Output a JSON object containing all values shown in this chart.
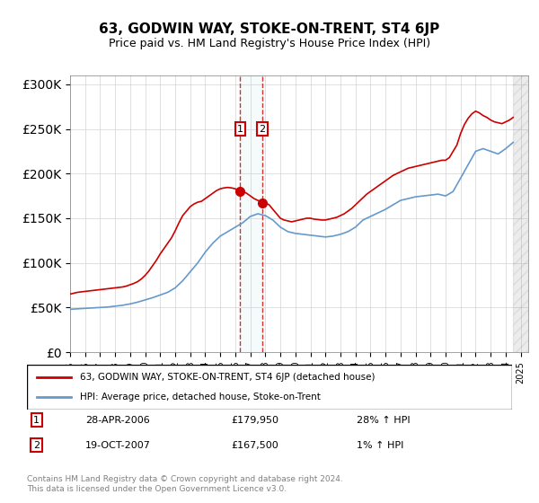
{
  "title": "63, GODWIN WAY, STOKE-ON-TRENT, ST4 6JP",
  "subtitle": "Price paid vs. HM Land Registry's House Price Index (HPI)",
  "legend_line1": "63, GODWIN WAY, STOKE-ON-TRENT, ST4 6JP (detached house)",
  "legend_line2": "HPI: Average price, detached house, Stoke-on-Trent",
  "transaction1_label": "1",
  "transaction1_date": "28-APR-2006",
  "transaction1_price": "£179,950",
  "transaction1_hpi": "28% ↑ HPI",
  "transaction2_label": "2",
  "transaction2_date": "19-OCT-2007",
  "transaction2_price": "£167,500",
  "transaction2_hpi": "1% ↑ HPI",
  "footnote": "Contains HM Land Registry data © Crown copyright and database right 2024.\nThis data is licensed under the Open Government Licence v3.0.",
  "red_line_color": "#cc0000",
  "blue_line_color": "#6699cc",
  "transaction1_x": 2006.32,
  "transaction2_x": 2007.8,
  "ylim_min": 0,
  "ylim_max": 310000,
  "xlim_min": 1995,
  "xlim_max": 2025.5,
  "hpi_years": [
    1995,
    1995.5,
    1996,
    1996.5,
    1997,
    1997.5,
    1998,
    1998.5,
    1999,
    1999.5,
    2000,
    2000.5,
    2001,
    2001.5,
    2002,
    2002.5,
    2003,
    2003.5,
    2004,
    2004.5,
    2005,
    2005.5,
    2006,
    2006.5,
    2007,
    2007.5,
    2008,
    2008.5,
    2009,
    2009.5,
    2010,
    2010.5,
    2011,
    2011.5,
    2012,
    2012.5,
    2013,
    2013.5,
    2014,
    2014.5,
    2015,
    2015.5,
    2016,
    2016.5,
    2017,
    2017.5,
    2018,
    2018.5,
    2019,
    2019.5,
    2020,
    2020.5,
    2021,
    2021.5,
    2022,
    2022.5,
    2023,
    2023.5,
    2024,
    2024.5
  ],
  "hpi_values": [
    48000,
    48500,
    49000,
    49500,
    50000,
    50500,
    51500,
    52500,
    54000,
    56000,
    58500,
    61000,
    64000,
    67000,
    72000,
    80000,
    90000,
    100000,
    112000,
    122000,
    130000,
    135000,
    140000,
    145000,
    152000,
    155000,
    153000,
    148000,
    140000,
    135000,
    133000,
    132000,
    131000,
    130000,
    129000,
    130000,
    132000,
    135000,
    140000,
    148000,
    152000,
    156000,
    160000,
    165000,
    170000,
    172000,
    174000,
    175000,
    176000,
    177000,
    175000,
    180000,
    195000,
    210000,
    225000,
    228000,
    225000,
    222000,
    228000,
    235000
  ],
  "price_years": [
    1995,
    1995.25,
    1995.5,
    1995.75,
    1996,
    1996.25,
    1996.5,
    1996.75,
    1997,
    1997.25,
    1997.5,
    1997.75,
    1998,
    1998.25,
    1998.5,
    1998.75,
    1999,
    1999.25,
    1999.5,
    1999.75,
    2000,
    2000.25,
    2000.5,
    2000.75,
    2001,
    2001.25,
    2001.5,
    2001.75,
    2002,
    2002.25,
    2002.5,
    2002.75,
    2003,
    2003.25,
    2003.5,
    2003.75,
    2004,
    2004.25,
    2004.5,
    2004.75,
    2005,
    2005.25,
    2005.5,
    2005.75,
    2006,
    2006.25,
    2006.5,
    2006.75,
    2007,
    2007.25,
    2007.5,
    2007.75,
    2008,
    2008.25,
    2008.5,
    2008.75,
    2009,
    2009.25,
    2009.5,
    2009.75,
    2010,
    2010.25,
    2010.5,
    2010.75,
    2011,
    2011.25,
    2011.5,
    2011.75,
    2012,
    2012.25,
    2012.5,
    2012.75,
    2013,
    2013.25,
    2013.5,
    2013.75,
    2014,
    2014.25,
    2014.5,
    2014.75,
    2015,
    2015.25,
    2015.5,
    2015.75,
    2016,
    2016.25,
    2016.5,
    2016.75,
    2017,
    2017.25,
    2017.5,
    2017.75,
    2018,
    2018.25,
    2018.5,
    2018.75,
    2019,
    2019.25,
    2019.5,
    2019.75,
    2020,
    2020.25,
    2020.5,
    2020.75,
    2021,
    2021.25,
    2021.5,
    2021.75,
    2022,
    2022.25,
    2022.5,
    2022.75,
    2023,
    2023.25,
    2023.5,
    2023.75,
    2024,
    2024.25,
    2024.5
  ],
  "price_values": [
    65000,
    66000,
    67000,
    67500,
    68000,
    68500,
    69000,
    69500,
    70000,
    70500,
    71000,
    71500,
    72000,
    72500,
    73000,
    74000,
    75500,
    77000,
    79000,
    82000,
    86000,
    91000,
    97000,
    103000,
    110000,
    116000,
    122000,
    128000,
    136000,
    145000,
    153000,
    158000,
    163000,
    166000,
    168000,
    169000,
    172000,
    175000,
    178000,
    181000,
    183000,
    184000,
    184500,
    184000,
    183000,
    180000,
    179950,
    178000,
    175000,
    172000,
    170000,
    168000,
    167500,
    165000,
    160000,
    155000,
    150000,
    148000,
    147000,
    146000,
    147000,
    148000,
    149000,
    150000,
    150000,
    149000,
    148500,
    148000,
    148000,
    149000,
    150000,
    151000,
    153000,
    155000,
    158000,
    161000,
    165000,
    169000,
    173000,
    177000,
    180000,
    183000,
    186000,
    189000,
    192000,
    195000,
    198000,
    200000,
    202000,
    204000,
    206000,
    207000,
    208000,
    209000,
    210000,
    211000,
    212000,
    213000,
    214000,
    215000,
    215000,
    218000,
    225000,
    232000,
    245000,
    255000,
    262000,
    267000,
    270000,
    268000,
    265000,
    263000,
    260000,
    258000,
    257000,
    256000,
    258000,
    260000,
    263000
  ]
}
